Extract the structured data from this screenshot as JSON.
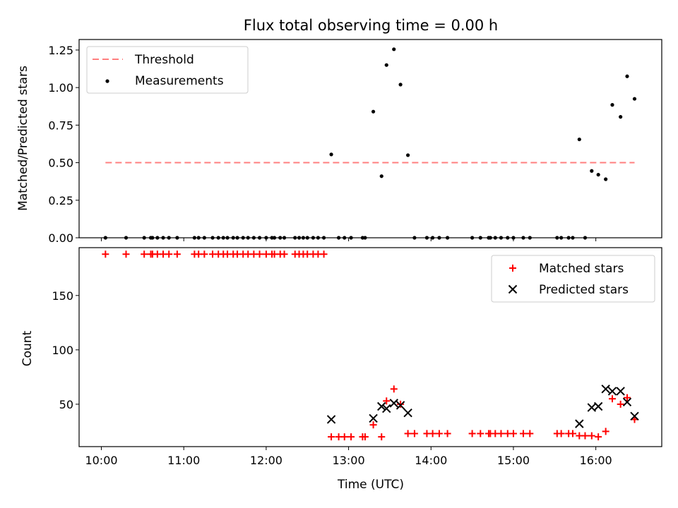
{
  "title": "Flux total observing time = 0.00 h",
  "colors": {
    "threshold": "#ff7f7f",
    "measurements": "#000000",
    "matched": "#ff0000",
    "predicted": "#000000"
  },
  "chart_data": [
    {
      "type": "scatter",
      "panel": "top",
      "ylabel": "Matched/Predicted stars",
      "ylim": [
        0,
        1.32
      ],
      "yticks": [
        0,
        0.25,
        0.5,
        0.75,
        1.0,
        1.25
      ],
      "ytick_labels": [
        "0.00",
        "0.25",
        "0.50",
        "0.75",
        "1.00",
        "1.25"
      ],
      "legend_position": "upper-left",
      "legend": [
        "Threshold",
        "Measurements"
      ],
      "threshold": {
        "name": "Threshold",
        "y": 0.5,
        "x_start": 10.05,
        "x_end": 16.47
      },
      "series": [
        {
          "name": "Measurements",
          "x": [
            10.05,
            10.3,
            10.52,
            10.6,
            10.62,
            10.68,
            10.75,
            10.82,
            10.92,
            11.13,
            11.18,
            11.25,
            11.35,
            11.42,
            11.48,
            11.53,
            11.6,
            11.65,
            11.72,
            11.78,
            11.85,
            11.92,
            12.0,
            12.07,
            12.1,
            12.17,
            12.22,
            12.35,
            12.4,
            12.45,
            12.5,
            12.57,
            12.63,
            12.7,
            12.79,
            12.88,
            12.95,
            13.03,
            13.17,
            13.2,
            13.3,
            13.4,
            13.46,
            13.55,
            13.63,
            13.72,
            13.8,
            13.95,
            14.02,
            14.1,
            14.2,
            14.5,
            14.6,
            14.7,
            14.72,
            14.78,
            14.85,
            14.93,
            15.0,
            15.12,
            15.2,
            15.53,
            15.58,
            15.67,
            15.72,
            15.8,
            15.87,
            15.95,
            16.03,
            16.12,
            16.2,
            16.3,
            16.38,
            16.47
          ],
          "y": [
            0,
            0,
            0,
            0,
            0,
            0,
            0,
            0,
            0,
            0,
            0,
            0,
            0,
            0,
            0,
            0,
            0,
            0,
            0,
            0,
            0,
            0,
            0,
            0,
            0,
            0,
            0,
            0,
            0,
            0,
            0,
            0,
            0,
            0,
            0.555,
            0,
            0,
            0,
            0,
            0,
            0.84,
            0.41,
            1.15,
            1.255,
            1.02,
            0.55,
            0,
            0,
            0,
            0,
            0,
            0,
            0,
            0,
            0,
            0,
            0,
            0,
            0,
            0,
            0,
            0,
            0,
            0,
            0,
            0.655,
            0,
            0.445,
            0.42,
            0.39,
            0.885,
            0.805,
            1.075,
            0.925
          ]
        }
      ]
    },
    {
      "type": "scatter",
      "panel": "bottom",
      "xlabel": "Time (UTC)",
      "ylabel": "Count",
      "xlim": [
        9.73,
        16.8
      ],
      "ylim": [
        11,
        194
      ],
      "xticks": [
        10,
        11,
        12,
        13,
        14,
        15,
        16
      ],
      "xtick_labels": [
        "10:00",
        "11:00",
        "12:00",
        "13:00",
        "14:00",
        "15:00",
        "16:00"
      ],
      "yticks": [
        50,
        100,
        150
      ],
      "ytick_labels": [
        "50",
        "100",
        "150"
      ],
      "legend_position": "upper-right",
      "legend": [
        "Matched stars",
        "Predicted stars"
      ],
      "series": [
        {
          "name": "Matched stars",
          "marker": "plus",
          "x": [
            10.05,
            10.3,
            10.52,
            10.6,
            10.62,
            10.68,
            10.75,
            10.82,
            10.92,
            11.13,
            11.18,
            11.25,
            11.35,
            11.42,
            11.48,
            11.53,
            11.6,
            11.65,
            11.72,
            11.78,
            11.85,
            11.92,
            12.0,
            12.07,
            12.1,
            12.17,
            12.22,
            12.35,
            12.4,
            12.45,
            12.5,
            12.57,
            12.63,
            12.7,
            12.79,
            12.88,
            12.95,
            13.03,
            13.17,
            13.2,
            13.3,
            13.4,
            13.46,
            13.55,
            13.63,
            13.72,
            13.8,
            13.95,
            14.02,
            14.1,
            14.2,
            14.5,
            14.6,
            14.7,
            14.72,
            14.78,
            14.85,
            14.93,
            15.0,
            15.12,
            15.2,
            15.53,
            15.58,
            15.67,
            15.72,
            15.8,
            15.87,
            15.95,
            16.03,
            16.12,
            16.2,
            16.3,
            16.38,
            16.47
          ],
          "y": [
            188,
            188,
            188,
            188,
            188,
            188,
            188,
            188,
            188,
            188,
            188,
            188,
            188,
            188,
            188,
            188,
            188,
            188,
            188,
            188,
            188,
            188,
            188,
            188,
            188,
            188,
            188,
            188,
            188,
            188,
            188,
            188,
            188,
            188,
            20,
            20,
            20,
            20,
            20,
            20,
            31,
            20,
            53,
            64,
            50,
            23,
            23,
            23,
            23,
            23,
            23,
            23,
            23,
            23,
            23,
            23,
            23,
            23,
            23,
            23,
            23,
            23,
            23,
            23,
            23,
            21,
            21,
            21,
            20,
            25,
            55,
            50,
            56,
            36
          ]
        },
        {
          "name": "Predicted stars",
          "marker": "x",
          "x": [
            12.79,
            13.3,
            13.4,
            13.46,
            13.55,
            13.63,
            13.72,
            15.8,
            15.95,
            16.03,
            16.12,
            16.2,
            16.3,
            16.38,
            16.47
          ],
          "y": [
            36,
            37,
            48,
            46,
            51,
            49,
            42,
            32,
            47,
            48,
            64,
            62,
            62,
            52,
            39
          ]
        }
      ]
    }
  ]
}
